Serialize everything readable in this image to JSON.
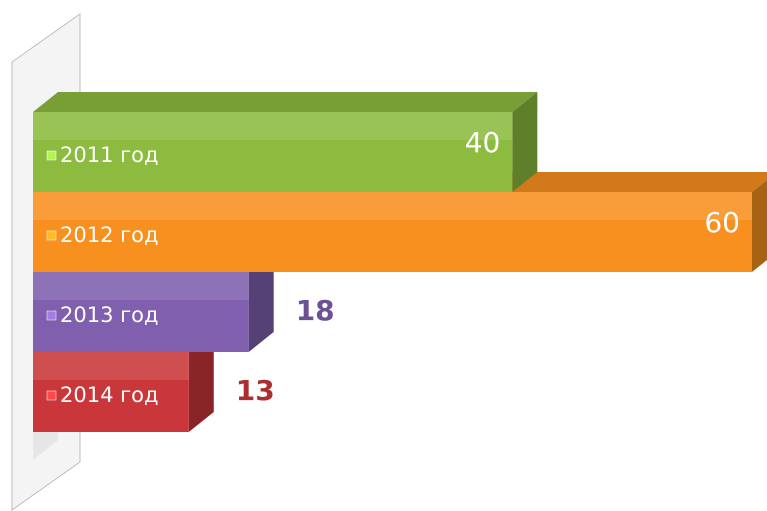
{
  "chart_data": {
    "type": "bar3d",
    "categories": [
      "2011 год",
      "2012 год",
      "2013 год",
      "2014 год"
    ],
    "values": [
      40,
      60,
      18,
      13
    ],
    "colors": [
      "#8cbb3f",
      "#f7901e",
      "#7f5fae",
      "#c9373a"
    ]
  }
}
